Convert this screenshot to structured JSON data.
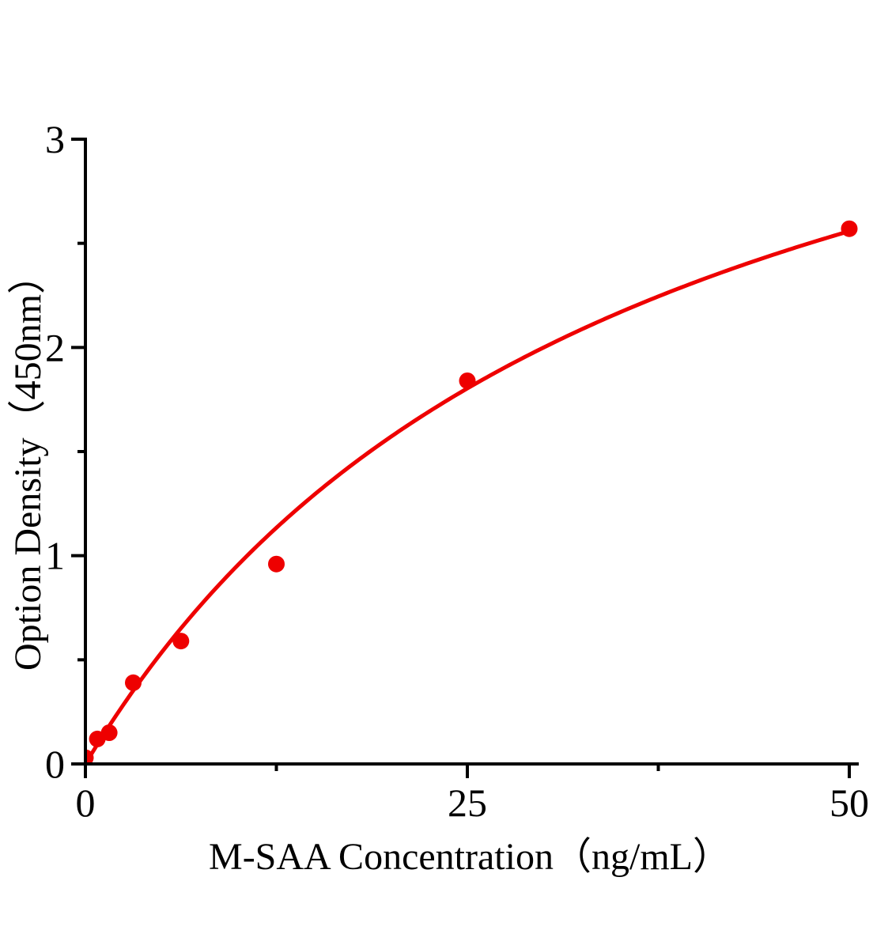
{
  "figure": {
    "background": "#ffffff"
  },
  "chart_data": {
    "type": "scatter",
    "title": "",
    "xlabel": "M-SAA Concentration（ng/mL）",
    "ylabel": "Option Density（450nm）",
    "x": [
      0,
      0.78,
      1.56,
      3.13,
      6.25,
      12.5,
      25,
      50
    ],
    "y": [
      0.03,
      0.12,
      0.15,
      0.39,
      0.59,
      0.96,
      1.84,
      2.57
    ],
    "xlim": [
      0,
      50
    ],
    "ylim": [
      0,
      3
    ],
    "x_ticks_major": [
      0,
      25,
      50
    ],
    "x_tick_labels": [
      "0",
      "25",
      "50"
    ],
    "x_ticks_minor": [
      12.5,
      37.5
    ],
    "y_ticks_major": [
      0,
      1,
      2,
      3
    ],
    "y_tick_labels": [
      "0",
      "1",
      "2",
      "3"
    ],
    "y_ticks_minor": [
      0.5,
      1.5,
      2.5
    ],
    "grid": false,
    "legend": null,
    "marker_color": "#ee0000",
    "line_color": "#ee0000",
    "axis_color": "#000000",
    "fit_curve": {
      "model": "y = a*x / (b + x)",
      "a": 4.4,
      "b": 36,
      "x_start": 0,
      "x_end": 50
    }
  }
}
